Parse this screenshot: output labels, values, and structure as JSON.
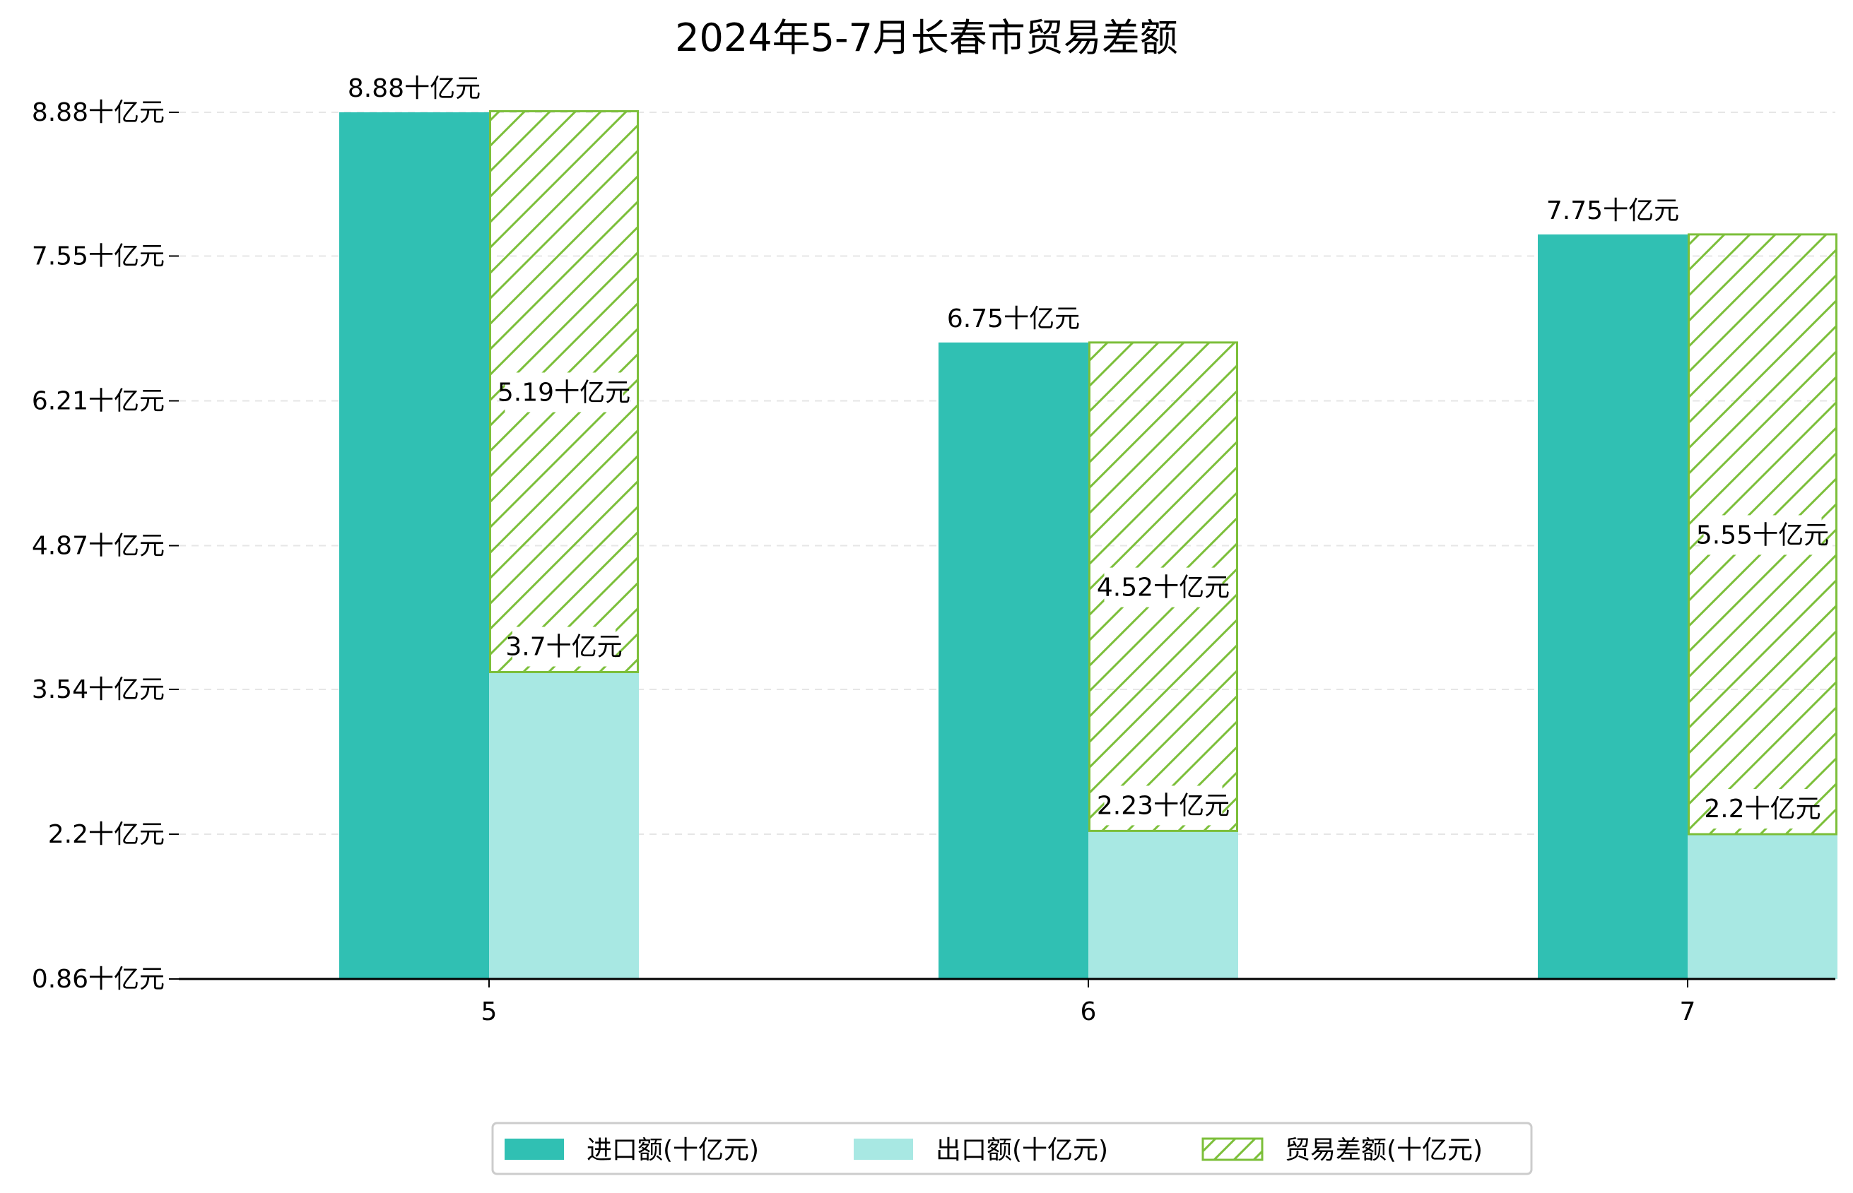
{
  "chart_data": {
    "type": "bar",
    "title": "2024年5-7月长春市贸易差额",
    "categories": [
      "5",
      "6",
      "7"
    ],
    "series": [
      {
        "name": "进口额(十亿元)",
        "values": [
          8.88,
          6.75,
          7.75
        ],
        "color": "#30c0b3",
        "labels": [
          "8.88十亿元",
          "6.75十亿元",
          "7.75十亿元"
        ]
      },
      {
        "name": "出口额(十亿元)",
        "values": [
          3.7,
          2.23,
          2.2
        ],
        "color": "#a8e8e3",
        "labels": [
          "3.7十亿元",
          "2.23十亿元",
          "2.2十亿元"
        ]
      },
      {
        "name": "贸易差额(十亿元)",
        "values": [
          5.19,
          4.52,
          5.55
        ],
        "color": "#7cbf3a",
        "hatch": true,
        "stacked_on": "出口额(十亿元)",
        "labels": [
          "5.19十亿元",
          "4.52十亿元",
          "5.55十亿元"
        ]
      }
    ],
    "yticks": [
      0.86,
      2.2,
      3.54,
      4.87,
      6.21,
      7.55,
      8.88
    ],
    "ytick_labels": [
      "0.86十亿元",
      "2.2十亿元",
      "3.54十亿元",
      "4.87十亿元",
      "6.21十亿元",
      "7.55十亿元",
      "8.88十亿元"
    ],
    "ylim": [
      0.86,
      8.88
    ],
    "grid": "horizontal dashed",
    "legend_position": "bottom-center"
  }
}
